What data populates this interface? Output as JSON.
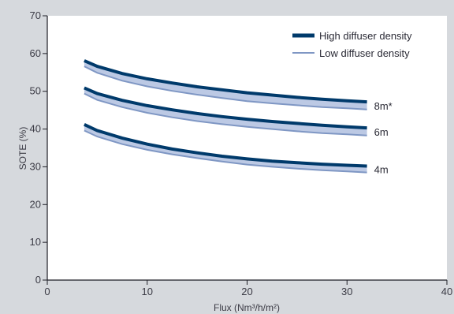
{
  "chart_data": {
    "type": "line",
    "xlabel": "Flux (Nm³/h/m²)",
    "ylabel": "SOTE (%)",
    "xlim": [
      0,
      40
    ],
    "ylim": [
      0,
      70
    ],
    "x_ticks": [
      0,
      10,
      20,
      30,
      40
    ],
    "y_ticks": [
      0,
      10,
      20,
      30,
      40,
      50,
      60,
      70
    ],
    "grid": false,
    "legend_position": "top-right",
    "legend": [
      {
        "label": "High diffuser density",
        "color": "#003a6b"
      },
      {
        "label": "Low diffuser density",
        "color": "#7f97c4"
      }
    ],
    "x": [
      3.7,
      5,
      7.5,
      10,
      12.5,
      15,
      17.5,
      20,
      22.5,
      25,
      27.5,
      30,
      32
    ],
    "groups": [
      {
        "label": "8m*",
        "high": [
          58.1,
          56.6,
          54.7,
          53.3,
          52.2,
          51.2,
          50.4,
          49.6,
          49.0,
          48.4,
          47.9,
          47.5,
          47.2
        ],
        "low": [
          56.6,
          54.9,
          52.8,
          51.3,
          50.1,
          49.1,
          48.2,
          47.4,
          46.8,
          46.3,
          45.8,
          45.5,
          45.2
        ]
      },
      {
        "label": "6m",
        "high": [
          50.9,
          49.4,
          47.6,
          46.2,
          45.1,
          44.1,
          43.3,
          42.6,
          42.0,
          41.5,
          41.0,
          40.6,
          40.3
        ],
        "low": [
          49.4,
          47.7,
          45.8,
          44.3,
          43.1,
          42.1,
          41.3,
          40.6,
          40.0,
          39.4,
          38.9,
          38.6,
          38.3
        ]
      },
      {
        "label": "4m",
        "high": [
          41.2,
          39.6,
          37.6,
          36.0,
          34.7,
          33.7,
          32.8,
          32.1,
          31.5,
          31.1,
          30.7,
          30.4,
          30.2
        ],
        "low": [
          39.6,
          38.0,
          36.0,
          34.5,
          33.3,
          32.3,
          31.4,
          30.6,
          30.0,
          29.5,
          29.1,
          28.8,
          28.5
        ]
      }
    ]
  }
}
